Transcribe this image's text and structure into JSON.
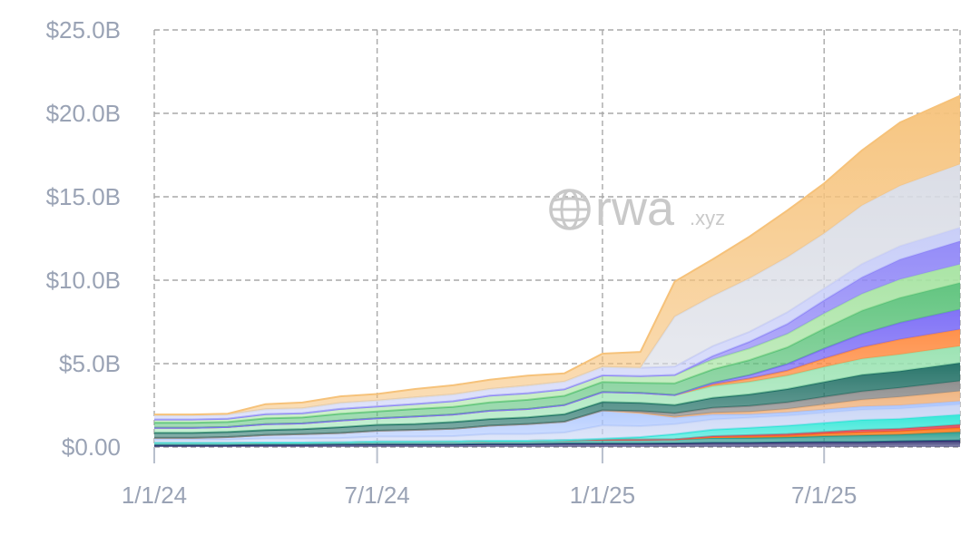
{
  "watermark": {
    "brand": "rwa",
    "suffix": ".xyz",
    "icon": "globe-icon"
  },
  "chart_data": {
    "type": "area",
    "stacked": true,
    "title": "",
    "xlabel": "",
    "ylabel": "",
    "ylim": [
      0,
      25
    ],
    "xlim": [
      "2024-01-01",
      "2025-10-20"
    ],
    "y_ticks": [
      "$0.00",
      "$5.0B",
      "$10.0B",
      "$15.0B",
      "$20.0B",
      "$25.0B"
    ],
    "x_ticks": [
      "1/1/24",
      "7/1/24",
      "1/1/25",
      "7/1/25"
    ],
    "grid": true,
    "legend": "none",
    "x": [
      "2024-01-01",
      "2024-02-01",
      "2024-03-01",
      "2024-04-01",
      "2024-05-01",
      "2024-06-01",
      "2024-07-01",
      "2024-08-01",
      "2024-09-01",
      "2024-10-01",
      "2024-11-01",
      "2024-12-01",
      "2025-01-01",
      "2025-02-01",
      "2025-03-01",
      "2025-04-01",
      "2025-05-01",
      "2025-06-01",
      "2025-07-01",
      "2025-08-01",
      "2025-09-01",
      "2025-10-20"
    ],
    "series": [
      {
        "color": "#2c2c6e",
        "values": [
          0.1,
          0.1,
          0.1,
          0.12,
          0.12,
          0.14,
          0.15,
          0.15,
          0.15,
          0.18,
          0.18,
          0.2,
          0.2,
          0.2,
          0.22,
          0.25,
          0.25,
          0.28,
          0.3,
          0.3,
          0.35,
          0.4
        ]
      },
      {
        "color": "#2a9d8f",
        "values": [
          0.15,
          0.15,
          0.15,
          0.15,
          0.15,
          0.15,
          0.18,
          0.18,
          0.2,
          0.2,
          0.2,
          0.22,
          0.25,
          0.25,
          0.25,
          0.3,
          0.3,
          0.3,
          0.35,
          0.4,
          0.4,
          0.5
        ]
      },
      {
        "color": "#ff7a1a",
        "values": [
          0,
          0,
          0,
          0,
          0,
          0,
          0,
          0,
          0,
          0,
          0,
          0,
          0,
          0,
          0,
          0.05,
          0.08,
          0.1,
          0.15,
          0.18,
          0.2,
          0.25
        ]
      },
      {
        "color": "#e04b5a",
        "values": [
          0,
          0,
          0,
          0,
          0,
          0,
          0,
          0,
          0,
          0,
          0,
          0,
          0,
          0,
          0,
          0.05,
          0.08,
          0.1,
          0.1,
          0.15,
          0.15,
          0.2
        ]
      },
      {
        "color": "#2ee6d6",
        "values": [
          0,
          0,
          0,
          0,
          0,
          0,
          0,
          0,
          0,
          0,
          0,
          0,
          0.05,
          0.15,
          0.3,
          0.4,
          0.45,
          0.5,
          0.55,
          0.6,
          0.6,
          0.6
        ]
      },
      {
        "color": "#c7d4f5",
        "values": [
          0.2,
          0.2,
          0.2,
          0.25,
          0.25,
          0.25,
          0.3,
          0.3,
          0.3,
          0.4,
          0.4,
          0.45,
          0.8,
          0.65,
          0.6,
          0.6,
          0.6,
          0.6,
          0.6,
          0.6,
          0.6,
          0.6
        ]
      },
      {
        "color": "#a9c4ff",
        "values": [
          0.1,
          0.1,
          0.15,
          0.2,
          0.25,
          0.3,
          0.35,
          0.4,
          0.45,
          0.5,
          0.6,
          0.65,
          0.9,
          0.8,
          0.4,
          0.3,
          0.2,
          0.2,
          0.2,
          0.2,
          0.2,
          0.2
        ]
      },
      {
        "color": "#f0b37e",
        "values": [
          0,
          0,
          0,
          0,
          0,
          0,
          0,
          0,
          0,
          0,
          0,
          0,
          0,
          0,
          0.05,
          0.1,
          0.15,
          0.2,
          0.3,
          0.4,
          0.5,
          0.6
        ]
      },
      {
        "color": "#8a8a8a",
        "values": [
          0,
          0,
          0,
          0,
          0,
          0,
          0,
          0,
          0,
          0,
          0,
          0,
          0,
          0.1,
          0.2,
          0.3,
          0.35,
          0.4,
          0.45,
          0.5,
          0.55,
          0.6
        ]
      },
      {
        "color": "#1f6f64",
        "values": [
          0.3,
          0.3,
          0.3,
          0.3,
          0.3,
          0.35,
          0.35,
          0.35,
          0.4,
          0.4,
          0.4,
          0.45,
          0.5,
          0.5,
          0.5,
          0.6,
          0.7,
          0.8,
          0.9,
          1.0,
          1.0,
          1.1
        ]
      },
      {
        "color": "#98e2b0",
        "values": [
          0.3,
          0.3,
          0.3,
          0.35,
          0.35,
          0.4,
          0.4,
          0.45,
          0.45,
          0.5,
          0.5,
          0.55,
          0.6,
          0.6,
          0.6,
          0.7,
          0.75,
          0.8,
          0.9,
          0.95,
          1.0,
          1.0
        ]
      },
      {
        "color": "#ff8c42",
        "values": [
          0,
          0,
          0,
          0,
          0,
          0,
          0,
          0,
          0,
          0,
          0,
          0,
          0,
          0,
          0,
          0.1,
          0.2,
          0.3,
          0.5,
          0.7,
          0.9,
          1.0
        ]
      },
      {
        "color": "#7b6cf6",
        "values": [
          0,
          0,
          0,
          0,
          0,
          0,
          0,
          0,
          0,
          0,
          0,
          0,
          0,
          0,
          0,
          0.1,
          0.2,
          0.4,
          0.6,
          0.8,
          1.0,
          1.2
        ]
      },
      {
        "color": "#5bc27a",
        "values": [
          0.3,
          0.3,
          0.3,
          0.35,
          0.35,
          0.4,
          0.4,
          0.45,
          0.45,
          0.5,
          0.55,
          0.55,
          0.6,
          0.6,
          0.7,
          0.8,
          0.9,
          1.0,
          1.2,
          1.4,
          1.5,
          1.6
        ]
      },
      {
        "color": "#a6e3a1",
        "values": [
          0.2,
          0.2,
          0.2,
          0.25,
          0.25,
          0.3,
          0.3,
          0.3,
          0.35,
          0.4,
          0.4,
          0.4,
          0.4,
          0.4,
          0.5,
          0.6,
          0.7,
          0.8,
          0.9,
          1.0,
          1.1,
          1.1
        ]
      },
      {
        "color": "#8f86f7",
        "values": [
          0,
          0,
          0,
          0,
          0,
          0,
          0,
          0,
          0,
          0,
          0,
          0,
          0,
          0,
          0,
          0.2,
          0.4,
          0.6,
          0.8,
          1.0,
          1.2,
          1.4
        ]
      },
      {
        "color": "#c6ccf8",
        "values": [
          0.25,
          0.25,
          0.25,
          0.3,
          0.3,
          0.35,
          0.35,
          0.4,
          0.4,
          0.4,
          0.45,
          0.45,
          0.5,
          0.5,
          0.5,
          0.6,
          0.6,
          0.7,
          0.7,
          0.8,
          0.8,
          0.8
        ]
      },
      {
        "color": "#d9dce5",
        "values": [
          0,
          0,
          0,
          0,
          0,
          0,
          0,
          0,
          0,
          0,
          0,
          0,
          0,
          0,
          3.0,
          3.0,
          3.2,
          3.3,
          3.3,
          3.5,
          3.6,
          3.8
        ]
      },
      {
        "color": "#f6c27a",
        "values": [
          0.05,
          0.05,
          0.05,
          0.3,
          0.35,
          0.4,
          0.4,
          0.5,
          0.55,
          0.55,
          0.6,
          0.5,
          0.8,
          0.95,
          2.1,
          2.2,
          2.5,
          2.8,
          3.0,
          3.3,
          3.8,
          4.1
        ]
      }
    ]
  }
}
